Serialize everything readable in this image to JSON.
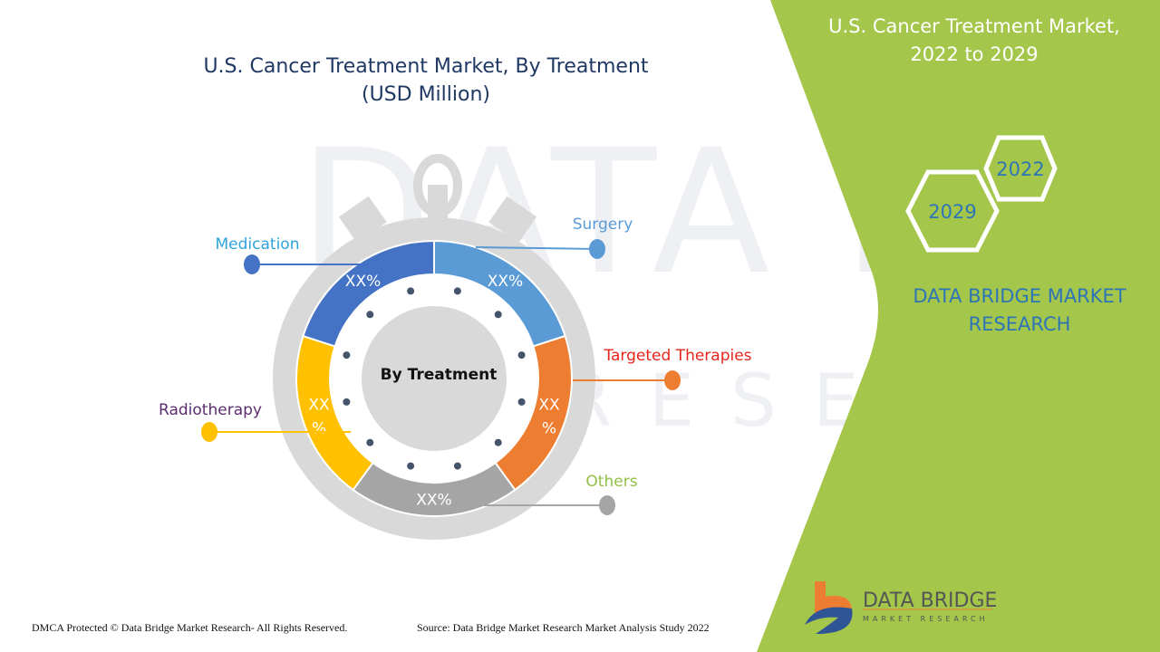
{
  "header": {
    "title_line1": "U.S. Cancer Treatment Market, By Treatment",
    "title_line2": "(USD Million)"
  },
  "right_panel": {
    "title_line1": "U.S. Cancer Treatment Market,",
    "title_line2": "2022 to 2029",
    "hex_years": [
      "2022",
      "2029"
    ],
    "brand_line1": "DATA BRIDGE MARKET",
    "brand_line2": "RESEARCH",
    "logo_text": "DATA BRIDGE",
    "logo_subtext": "MARKET RESEARCH",
    "green": "#a4c64a"
  },
  "footer": {
    "left": "DMCA Protected © Data Bridge Market Research- All Rights Reserved.",
    "right": "Source: Data Bridge Market Research Market Analysis Study 2022"
  },
  "chart_data": {
    "type": "pie",
    "center_label": "By Treatment",
    "series": [
      {
        "name": "Surgery",
        "value": 20,
        "label": "XX%",
        "color": "#5b9bd5",
        "label_color": "#5b9bd5"
      },
      {
        "name": "Targeted Therapies",
        "value": 20,
        "label": "XX\n%",
        "color": "#ed7d31",
        "label_color": "#e8251b"
      },
      {
        "name": "Others",
        "value": 20,
        "label": "XX%",
        "color": "#a5a5a5",
        "label_color": "#92c045"
      },
      {
        "name": "Radiotherapy",
        "value": 20,
        "label": "XX\n%",
        "color": "#ffc000",
        "label_color": "#5b2c6f"
      },
      {
        "name": "Medication",
        "value": 20,
        "label": "XX%",
        "color": "#4472c4",
        "label_color": "#2ea3dc"
      }
    ]
  }
}
